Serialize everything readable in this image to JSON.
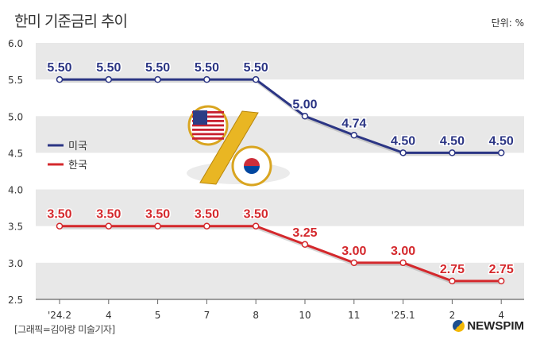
{
  "title": "한미 기준금리 추이",
  "unit": "단위: %",
  "credit": "[그래픽=김아랑 미술기자]",
  "logo": "NEWSPIM",
  "chart_data": {
    "type": "line",
    "title": "한미 기준금리 추이",
    "ylabel": "%",
    "ylim": [
      2.5,
      6.0
    ],
    "yticks": [
      "2.5",
      "3.0",
      "3.5",
      "4.0",
      "4.5",
      "5.0",
      "5.5",
      "6.0"
    ],
    "categories": [
      "'24.2",
      "4",
      "5",
      "7",
      "8",
      "10",
      "11",
      "'25.1",
      "2",
      "4"
    ],
    "legend_position": "left-middle",
    "series": [
      {
        "name": "미국",
        "color": "#2b3584",
        "values": [
          5.5,
          5.5,
          5.5,
          5.5,
          5.5,
          5.0,
          4.74,
          4.5,
          4.5,
          4.5
        ],
        "labels": [
          "5.50",
          "5.50",
          "5.50",
          "5.50",
          "5.50",
          "5.00",
          "4.74",
          "4.50",
          "4.50",
          "4.50"
        ]
      },
      {
        "name": "한국",
        "color": "#d4282c",
        "values": [
          3.5,
          3.5,
          3.5,
          3.5,
          3.5,
          3.25,
          3.0,
          3.0,
          2.75,
          2.75
        ],
        "labels": [
          "3.50",
          "3.50",
          "3.50",
          "3.50",
          "3.50",
          "3.25",
          "3.00",
          "3.00",
          "2.75",
          "2.75"
        ]
      }
    ]
  }
}
